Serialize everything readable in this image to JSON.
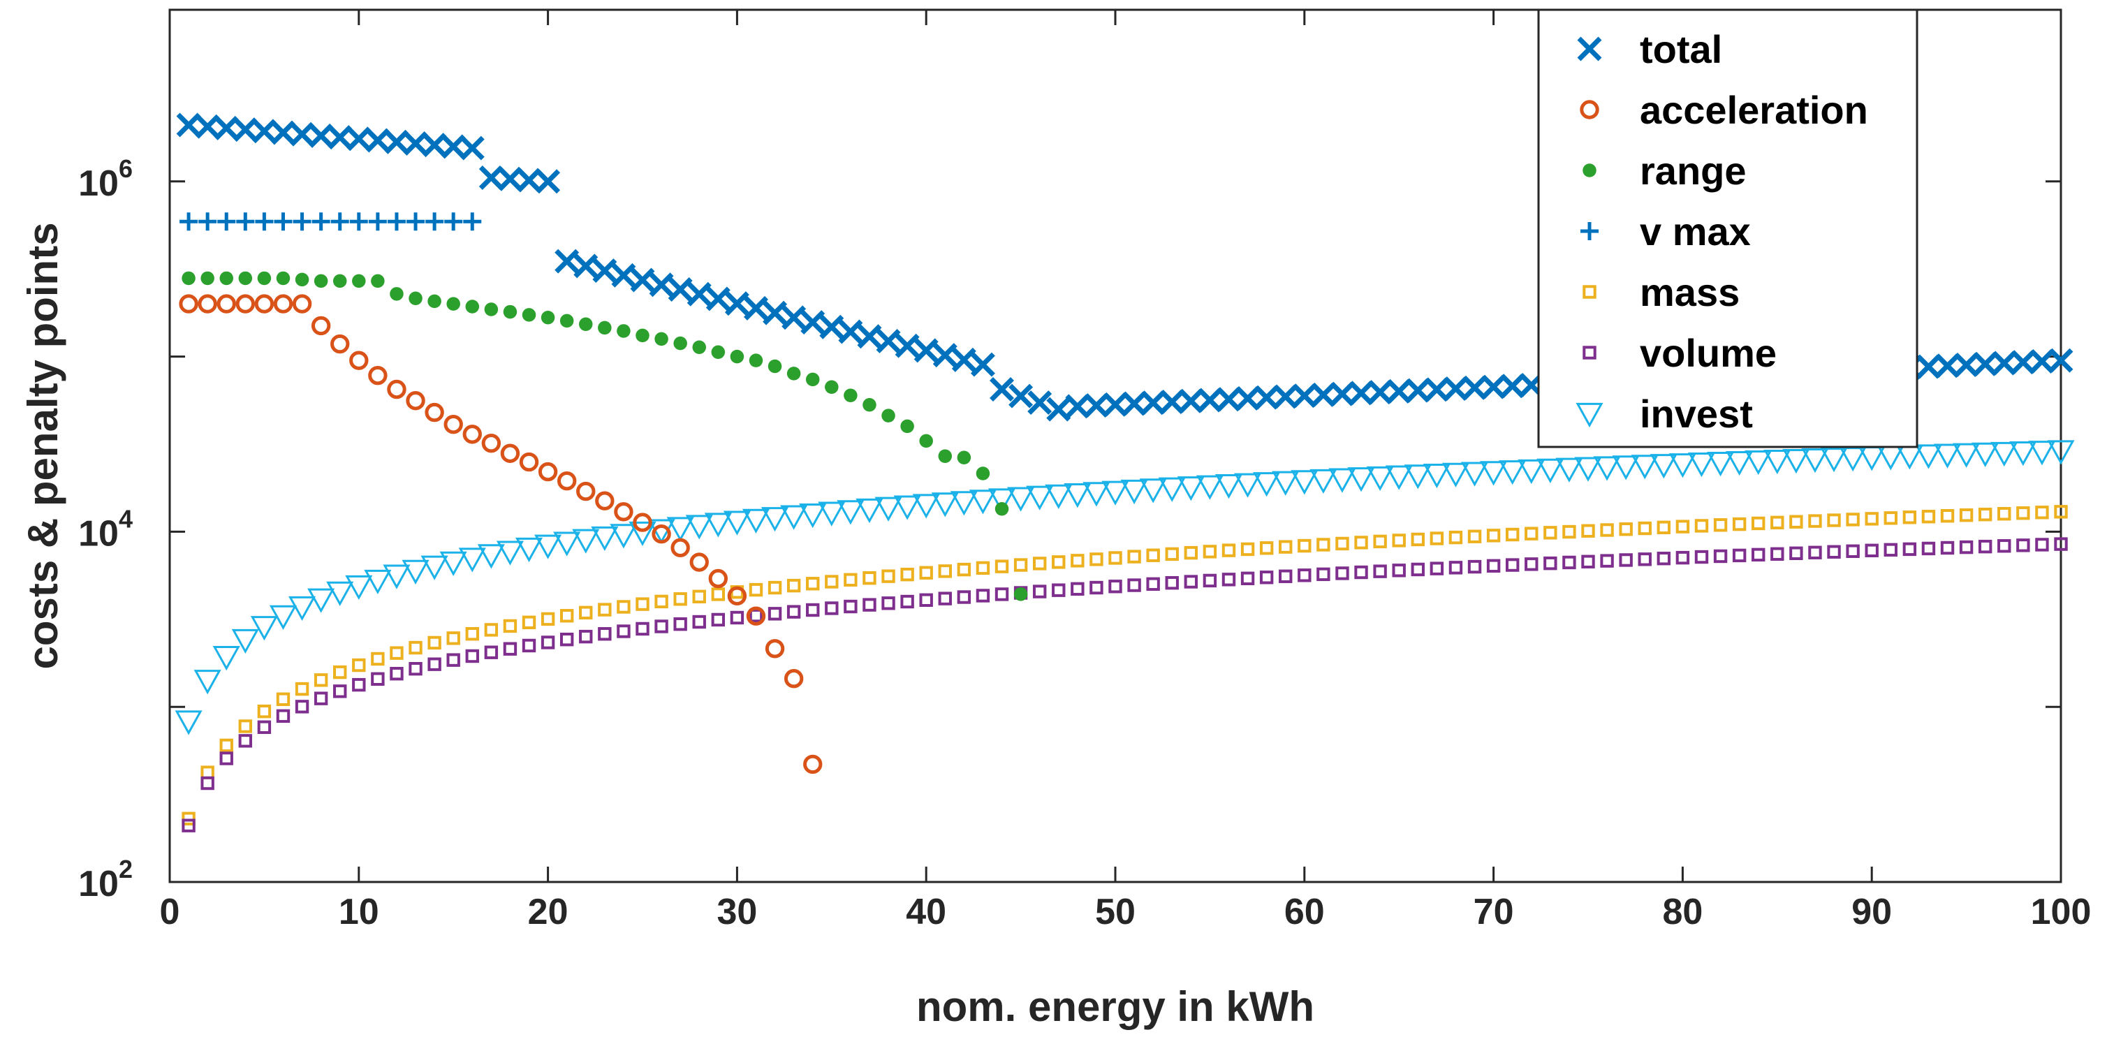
{
  "chart_data": {
    "type": "scatter",
    "title": "",
    "xlabel": "nom. energy in kWh",
    "ylabel": "costs & penalty points",
    "xlim": [
      0,
      100
    ],
    "ylim_log10": [
      2,
      6.98
    ],
    "yscale": "log",
    "x_ticks": [
      "0",
      "10",
      "20",
      "30",
      "40",
      "50",
      "60",
      "70",
      "80",
      "90",
      "100"
    ],
    "y_ticks": [
      {
        "exp": 2,
        "base": "10",
        "power": "2"
      },
      {
        "exp": 4,
        "base": "10",
        "power": "4"
      },
      {
        "exp": 6,
        "base": "10",
        "power": "6"
      }
    ],
    "legend_position": "top-right",
    "series": [
      {
        "name": "total",
        "marker": "x",
        "color": "#0072BD",
        "ranges": [
          {
            "x0": 1,
            "x1": 16,
            "y0": 2100000,
            "y1": 1550000
          },
          {
            "x0": 17,
            "x1": 20,
            "y0": 1050000,
            "y1": 1000000
          },
          {
            "x0": 21,
            "x1": 43,
            "y0": 350000,
            "y1": 90000
          },
          {
            "x0": 44,
            "x1": 47,
            "y0": 65000,
            "y1": 50000
          },
          {
            "x0": 48,
            "x1": 100,
            "y0": 52000,
            "y1": 95000
          }
        ]
      },
      {
        "name": "acceleration",
        "marker": "o",
        "color": "#D95319",
        "points": [
          [
            1,
            200000
          ],
          [
            2,
            200000
          ],
          [
            3,
            200000
          ],
          [
            4,
            200000
          ],
          [
            5,
            200000
          ],
          [
            6,
            200000
          ],
          [
            7,
            200000
          ],
          [
            8,
            150000
          ],
          [
            9,
            118000
          ],
          [
            10,
            95000
          ],
          [
            11,
            78000
          ],
          [
            12,
            65000
          ],
          [
            13,
            56000
          ],
          [
            14,
            48000
          ],
          [
            15,
            41000
          ],
          [
            16,
            36000
          ],
          [
            17,
            32000
          ],
          [
            18,
            28000
          ],
          [
            19,
            25000
          ],
          [
            20,
            22000
          ],
          [
            21,
            19500
          ],
          [
            22,
            17000
          ],
          [
            23,
            15000
          ],
          [
            24,
            13000
          ],
          [
            25,
            11300
          ],
          [
            26,
            9700
          ],
          [
            27,
            8100
          ],
          [
            28,
            6700
          ],
          [
            29,
            5400
          ],
          [
            30,
            4300
          ],
          [
            31,
            3300
          ],
          [
            32,
            2150
          ],
          [
            33,
            1450
          ],
          [
            34,
            470
          ]
        ]
      },
      {
        "name": "range",
        "marker": "dot",
        "color": "#2CA02C",
        "points": [
          [
            1,
            280000
          ],
          [
            2,
            280000
          ],
          [
            3,
            280000
          ],
          [
            4,
            280000
          ],
          [
            5,
            280000
          ],
          [
            6,
            280000
          ],
          [
            7,
            275000
          ],
          [
            8,
            270000
          ],
          [
            9,
            270000
          ],
          [
            10,
            270000
          ],
          [
            11,
            270000
          ],
          [
            12,
            228000
          ],
          [
            13,
            215000
          ],
          [
            14,
            207000
          ],
          [
            15,
            200000
          ],
          [
            16,
            193000
          ],
          [
            17,
            186000
          ],
          [
            18,
            180000
          ],
          [
            19,
            173000
          ],
          [
            20,
            167000
          ],
          [
            21,
            160000
          ],
          [
            22,
            153000
          ],
          [
            23,
            146000
          ],
          [
            24,
            140000
          ],
          [
            25,
            132000
          ],
          [
            26,
            126000
          ],
          [
            27,
            119000
          ],
          [
            28,
            113000
          ],
          [
            29,
            106000
          ],
          [
            30,
            100000
          ],
          [
            31,
            95000
          ],
          [
            32,
            88000
          ],
          [
            33,
            80000
          ],
          [
            34,
            74000
          ],
          [
            35,
            67000
          ],
          [
            36,
            60000
          ],
          [
            37,
            53000
          ],
          [
            38,
            46000
          ],
          [
            39,
            40000
          ],
          [
            40,
            33000
          ],
          [
            41,
            27000
          ],
          [
            42,
            26500
          ],
          [
            43,
            21500
          ],
          [
            44,
            13500
          ],
          [
            45,
            4400
          ]
        ]
      },
      {
        "name": "v max",
        "marker": "plus",
        "color": "#0072BD",
        "range": {
          "x0": 1,
          "x1": 16,
          "y": 590000
        }
      },
      {
        "name": "mass",
        "marker": "square",
        "color": "#EDB120",
        "curve": {
          "x0": 1,
          "x1": 100,
          "y0": 230,
          "y1": 13000
        }
      },
      {
        "name": "volume",
        "marker": "square",
        "color": "#7E2F8E",
        "curve": {
          "x0": 1,
          "x1": 100,
          "y0": 210,
          "y1": 8500
        }
      },
      {
        "name": "invest",
        "marker": "triangle-down",
        "color": "#1AB2E8",
        "curve": {
          "x0": 1,
          "x1": 100,
          "y0": 830,
          "y1": 29000
        }
      }
    ]
  }
}
